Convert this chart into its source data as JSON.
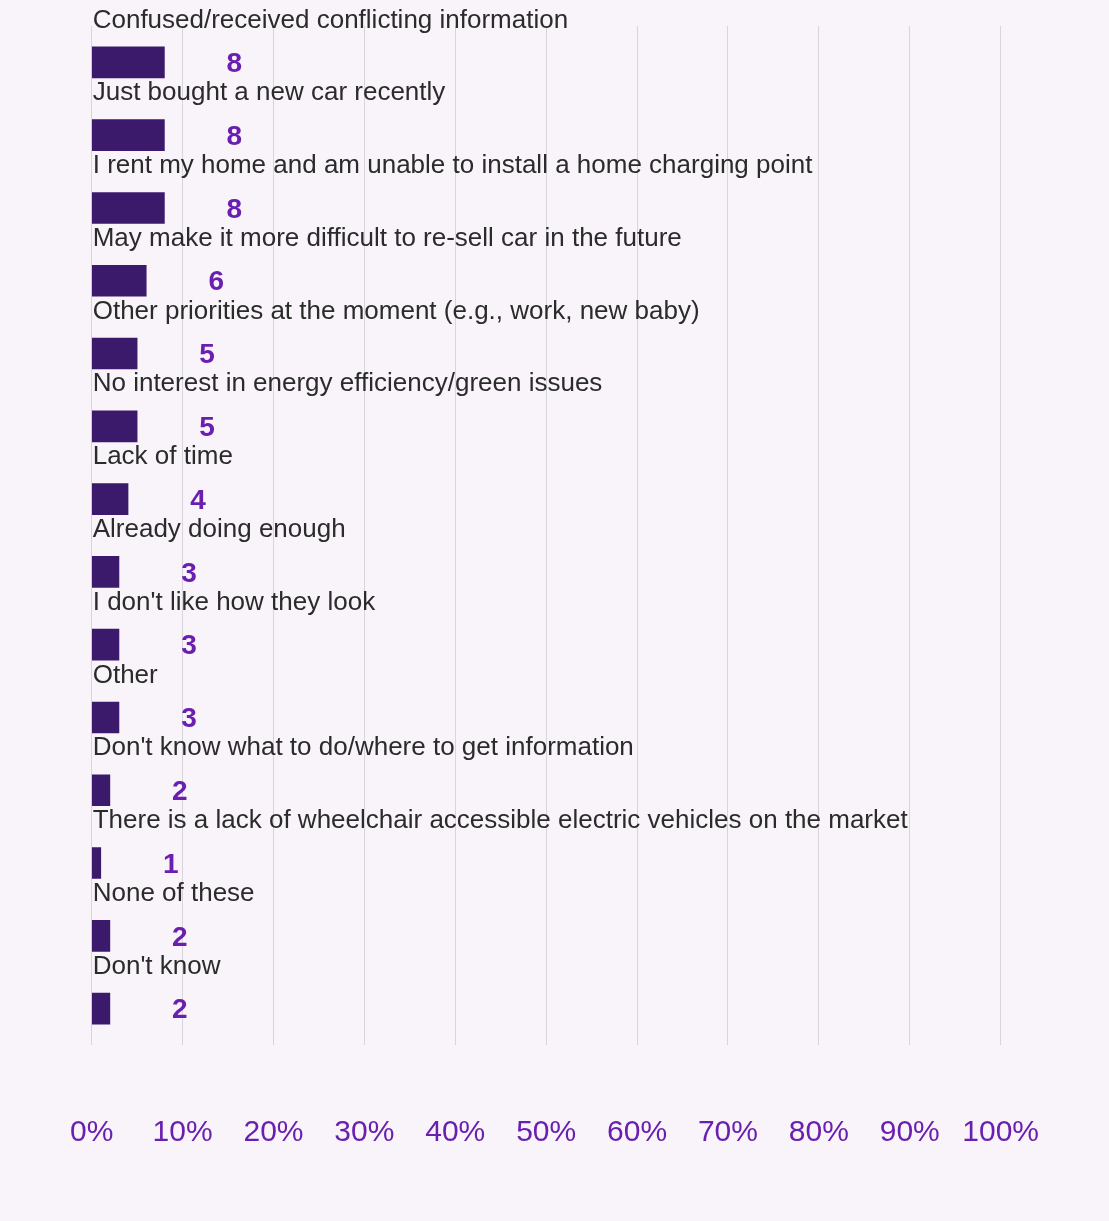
{
  "chart_data": {
    "type": "bar",
    "orientation": "horizontal",
    "categories": [
      "Confused/received conflicting information",
      "Just bought a new car recently",
      "I rent my home and am unable to install a home charging point",
      "May make it more difficult to re-sell car in the future",
      "Other priorities at the moment (e.g., work, new baby)",
      "No interest in energy efficiency/green issues",
      "Lack of time",
      "Already doing enough",
      "I don't like how they look",
      "Other",
      "Don't know what to do/where to get information",
      "There is a lack of wheelchair accessible electric vehicles on the market",
      "None of these",
      "Don't know"
    ],
    "values": [
      8,
      8,
      8,
      6,
      5,
      5,
      4,
      3,
      3,
      3,
      2,
      1,
      2,
      2
    ],
    "color": "#3c1a6b",
    "xlim": [
      0,
      100
    ],
    "xticks": [
      {
        "value": 0,
        "label": "0%"
      },
      {
        "value": 10,
        "label": "10%"
      },
      {
        "value": 20,
        "label": "20%"
      },
      {
        "value": 30,
        "label": "30%"
      },
      {
        "value": 40,
        "label": "40%"
      },
      {
        "value": 50,
        "label": "50%"
      },
      {
        "value": 60,
        "label": "60%"
      },
      {
        "value": 70,
        "label": "70%"
      },
      {
        "value": 80,
        "label": "80%"
      },
      {
        "value": 90,
        "label": "90%"
      },
      {
        "value": 100,
        "label": "100%"
      }
    ],
    "grid": "x",
    "data_labels": true,
    "legend": false
  }
}
